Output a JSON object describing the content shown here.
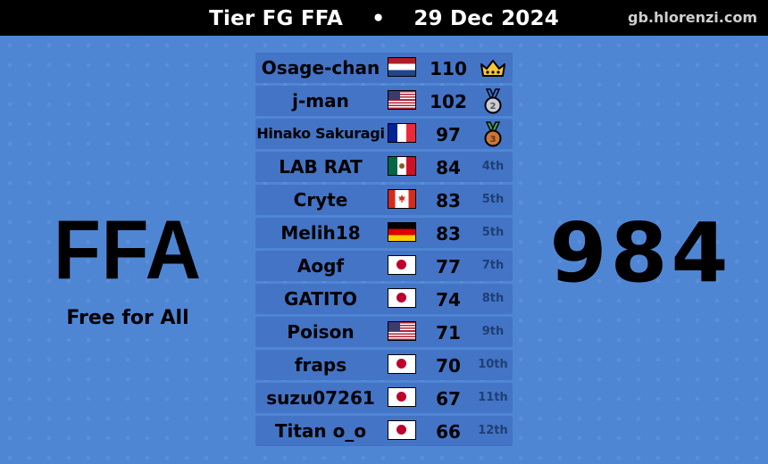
{
  "header": {
    "tier": "Tier FG FFA",
    "separator": "•",
    "date": "29 Dec 2024",
    "site": "gb.hlorenzi.com"
  },
  "mode": {
    "code": "FFA",
    "name": "Free for All"
  },
  "total": "984",
  "colors": {
    "background": "#4f86d4",
    "row": "#4374c6",
    "topbar": "#000000"
  },
  "standings": [
    {
      "name": "Osage-chan",
      "flag": "netherlands-flag",
      "score": "110",
      "rank": "",
      "rank_icon": "crown-icon"
    },
    {
      "name": "j-man",
      "flag": "usa-flag",
      "score": "102",
      "rank": "",
      "rank_icon": "silver-medal-icon"
    },
    {
      "name": "Hinako Sakuragi",
      "flag": "france-flag",
      "score": "97",
      "rank": "",
      "rank_icon": "bronze-medal-icon"
    },
    {
      "name": "LAB RAT",
      "flag": "mexico-flag",
      "score": "84",
      "rank": "4th"
    },
    {
      "name": "Cryte",
      "flag": "canada-flag",
      "score": "83",
      "rank": "5th"
    },
    {
      "name": "Melih18",
      "flag": "germany-flag",
      "score": "83",
      "rank": "5th"
    },
    {
      "name": "Aogf",
      "flag": "japan-flag",
      "score": "77",
      "rank": "7th"
    },
    {
      "name": "GATITO",
      "flag": "japan-flag",
      "score": "74",
      "rank": "8th"
    },
    {
      "name": "Poison",
      "flag": "usa-flag",
      "score": "71",
      "rank": "9th"
    },
    {
      "name": "fraps",
      "flag": "japan-flag",
      "score": "70",
      "rank": "10th"
    },
    {
      "name": "suzu07261",
      "flag": "japan-flag",
      "score": "67",
      "rank": "11th"
    },
    {
      "name": "Titan o_o",
      "flag": "japan-flag",
      "score": "66",
      "rank": "12th"
    }
  ]
}
